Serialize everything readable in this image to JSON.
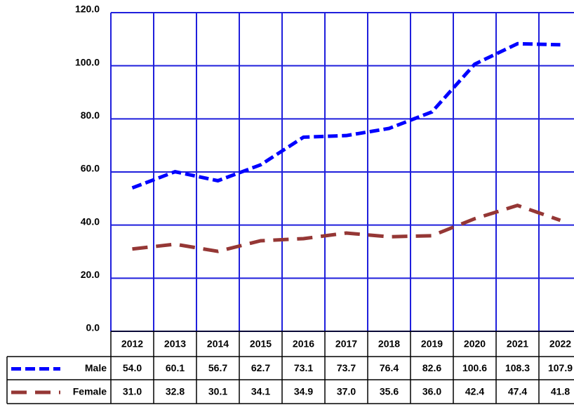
{
  "chart_data": {
    "type": "line",
    "categories": [
      "2012",
      "2013",
      "2014",
      "2015",
      "2016",
      "2017",
      "2018",
      "2019",
      "2020",
      "2021",
      "2022"
    ],
    "series": [
      {
        "name": "Male",
        "color": "#0000ff",
        "values": [
          54.0,
          60.1,
          56.7,
          62.7,
          73.1,
          73.7,
          76.4,
          82.6,
          100.6,
          108.3,
          107.9
        ],
        "value_labels": [
          "54.0",
          "60.1",
          "56.7",
          "62.7",
          "73.1",
          "73.7",
          "76.4",
          "82.6",
          "100.6",
          "108.3",
          "107.9"
        ]
      },
      {
        "name": "Female",
        "color": "#953735",
        "values": [
          31.0,
          32.8,
          30.1,
          34.1,
          34.9,
          37.0,
          35.6,
          36.0,
          42.4,
          47.4,
          41.8
        ],
        "value_labels": [
          "31.0",
          "32.8",
          "30.1",
          "34.1",
          "34.9",
          "37.0",
          "35.6",
          "36.0",
          "42.4",
          "47.4",
          "41.8"
        ]
      }
    ],
    "ylim": [
      0,
      120
    ],
    "yticks": [
      {
        "value": 0,
        "label": "0.0"
      },
      {
        "value": 20,
        "label": "20.0"
      },
      {
        "value": 40,
        "label": "40.0"
      },
      {
        "value": 60,
        "label": "60.0"
      },
      {
        "value": 80,
        "label": "80.0"
      },
      {
        "value": 100,
        "label": "100.0"
      },
      {
        "value": 120,
        "label": "120.0"
      }
    ],
    "grid": true,
    "grid_color": "#1f1fdc"
  }
}
